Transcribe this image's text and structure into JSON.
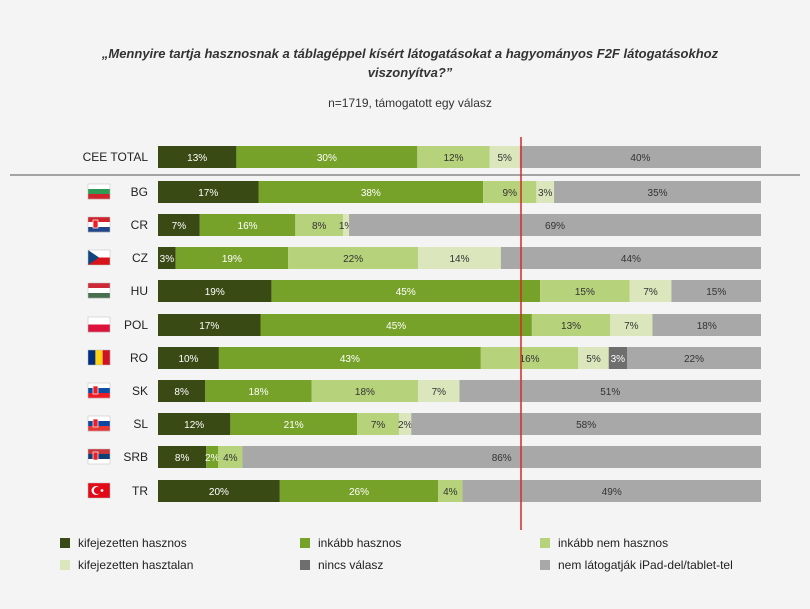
{
  "title": "„Mennyire tartja hasznosnak a táblagéppel kísért látogatásokat a hagyományos F2F látogatásokhoz viszonyítva?”",
  "title_line1": "„Mennyire tartja hasznosnak a táblagéppel kísért látogatásokat a hagyományos F2F látogatásokhoz",
  "title_line2": "viszonyítva?”",
  "subtitle": "n=1719, támogatott egy válasz",
  "colors": {
    "kifejezetten hasznos": "#3a4a14",
    "inkább hasznos": "#77a22a",
    "inkább nem hasznos": "#b6d27a",
    "kifejezetten hasztalan": "#dbe6bc",
    "nincs válasz": "#6e6e6e",
    "nem látogatják iPad-del/tablet-tel": "#a8a8a8"
  },
  "flags": {
    "BG": [
      "#ffffff",
      "#2f9a53",
      "#d0232c"
    ],
    "CR": [
      "#d0232c",
      "#ffffff",
      "#21468b"
    ],
    "CZ": "cz-flag",
    "HU": [
      "#ce2939",
      "#ffffff",
      "#477050"
    ],
    "POL": [
      "#ffffff",
      "#dc143c"
    ],
    "RO": [
      "#002b7f",
      "#fcd116",
      "#ce1126"
    ],
    "SK": [
      "#ffffff",
      "#0b4ea2",
      "#ee1c25"
    ],
    "SL": [
      "#ffffff",
      "#0d47a1",
      "#e53935"
    ],
    "SRB": [
      "#c6363c",
      "#0c4076",
      "#ffffff"
    ],
    "TR": "tr-flag"
  },
  "chart_data": {
    "type": "bar",
    "stacked": true,
    "orientation": "horizontal",
    "categories": [
      "CEE TOTAL",
      "BG",
      "CR",
      "CZ",
      "HU",
      "POL",
      "RO",
      "SK",
      "SL",
      "SRB",
      "TR"
    ],
    "xlim": [
      0,
      100
    ],
    "series": [
      {
        "name": "kifejezetten hasznos",
        "values": [
          13,
          17,
          7,
          3,
          19,
          17,
          10,
          8,
          12,
          8,
          20
        ]
      },
      {
        "name": "inkább hasznos",
        "values": [
          30,
          38,
          16,
          19,
          45,
          45,
          43,
          18,
          21,
          2,
          26
        ]
      },
      {
        "name": "inkább nem hasznos",
        "values": [
          12,
          9,
          8,
          22,
          15,
          13,
          16,
          18,
          7,
          4,
          4
        ]
      },
      {
        "name": "kifejezetten hasztalan",
        "values": [
          5,
          3,
          1,
          14,
          7,
          7,
          5,
          7,
          2,
          0,
          0
        ]
      },
      {
        "name": "nincs válasz",
        "values": [
          0,
          0,
          0,
          0,
          0,
          0,
          3,
          0,
          0,
          0,
          0
        ]
      },
      {
        "name": "nem látogatják iPad-del/tablet-tel",
        "values": [
          40,
          35,
          69,
          44,
          15,
          18,
          22,
          51,
          58,
          86,
          49
        ]
      }
    ],
    "labels": [
      [
        "13%",
        "30%",
        "12%",
        "5%",
        "",
        "40%"
      ],
      [
        "17%",
        "38%",
        "9%",
        "3%",
        "",
        "35%"
      ],
      [
        "7%",
        "16%",
        "8%",
        "1%",
        "",
        "69%"
      ],
      [
        "3%",
        "19%",
        "22%",
        "14%",
        "",
        "44%"
      ],
      [
        "19%",
        "45%",
        "15%",
        "7%",
        "",
        "15%"
      ],
      [
        "17%",
        "45%",
        "13%",
        "7%",
        "",
        "18%"
      ],
      [
        "10%",
        "43%",
        "16%",
        "5%",
        "3%",
        "22%"
      ],
      [
        "8%",
        "18%",
        "18%",
        "7%",
        "",
        "51%"
      ],
      [
        "12%",
        "21%",
        "7%",
        "2%",
        "",
        "58%"
      ],
      [
        "8%",
        "2%",
        "4%",
        "",
        "",
        "86%"
      ],
      [
        "20%",
        "26%",
        "4%",
        "",
        "",
        "49%"
      ]
    ],
    "reference_line": "vertical red line between positive and negative answers",
    "legend_position": "bottom"
  }
}
